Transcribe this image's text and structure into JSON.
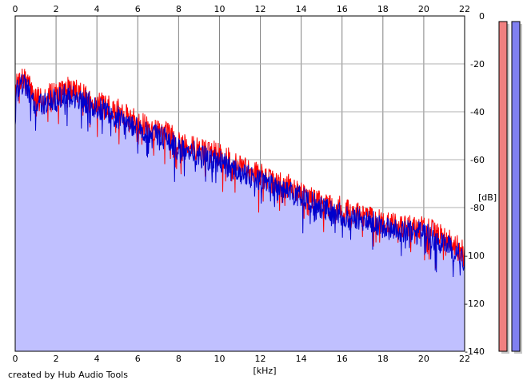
{
  "chart_data": {
    "type": "area",
    "xlabel": "[kHz]",
    "ylabel": "[dB]",
    "xlim": [
      0,
      22
    ],
    "ylim": [
      -140,
      0
    ],
    "x_ticks": [
      0,
      2,
      4,
      6,
      8,
      10,
      12,
      14,
      16,
      18,
      20,
      22
    ],
    "y_ticks": [
      0,
      -20,
      -40,
      -60,
      -80,
      -100,
      -120,
      -140
    ],
    "grid": true,
    "fill_color": "#c0c0ff",
    "series": [
      {
        "color": "#ff0000",
        "x": [
          0.0,
          0.3,
          0.6,
          1.0,
          1.5,
          2.0,
          2.5,
          3.0,
          3.5,
          4.0,
          4.5,
          5.0,
          5.5,
          6.0,
          6.5,
          7.0,
          7.5,
          8.0,
          8.5,
          9.0,
          9.5,
          10.0,
          10.5,
          11.0,
          11.5,
          12.0,
          12.5,
          13.0,
          13.5,
          14.0,
          14.5,
          15.0,
          15.5,
          16.0,
          16.5,
          17.0,
          17.5,
          18.0,
          18.5,
          19.0,
          19.5,
          20.0,
          20.5,
          21.0,
          21.5,
          22.0
        ],
        "values": [
          -30,
          -26,
          -28,
          -34,
          -33,
          -32,
          -30,
          -31,
          -34,
          -36,
          -38,
          -39,
          -42,
          -44,
          -47,
          -48,
          -49,
          -52,
          -54,
          -56,
          -56,
          -58,
          -60,
          -63,
          -64,
          -66,
          -69,
          -70,
          -71,
          -74,
          -76,
          -78,
          -80,
          -80,
          -82,
          -83,
          -85,
          -86,
          -87,
          -88,
          -87,
          -89,
          -90,
          -92,
          -95,
          -99
        ]
      },
      {
        "color": "#0000cc",
        "x": [
          0.0,
          0.3,
          0.6,
          1.0,
          1.5,
          2.0,
          2.5,
          3.0,
          3.5,
          4.0,
          4.5,
          5.0,
          5.5,
          6.0,
          6.5,
          7.0,
          7.5,
          8.0,
          8.5,
          9.0,
          9.5,
          10.0,
          10.5,
          11.0,
          11.5,
          12.0,
          12.5,
          13.0,
          13.5,
          14.0,
          14.5,
          15.0,
          15.5,
          16.0,
          16.5,
          17.0,
          17.5,
          18.0,
          18.5,
          19.0,
          19.5,
          20.0,
          20.5,
          21.0,
          21.5,
          22.0
        ],
        "values": [
          -33,
          -28,
          -30,
          -37,
          -36,
          -35,
          -33,
          -34,
          -36,
          -38,
          -40,
          -42,
          -44,
          -47,
          -49,
          -50,
          -52,
          -55,
          -56,
          -58,
          -60,
          -61,
          -63,
          -65,
          -67,
          -69,
          -71,
          -73,
          -74,
          -76,
          -78,
          -80,
          -82,
          -83,
          -84,
          -85,
          -86,
          -88,
          -89,
          -90,
          -90,
          -91,
          -93,
          -95,
          -98,
          -102
        ]
      }
    ],
    "level_meters": [
      {
        "color": "#f08080",
        "level": 1.0
      },
      {
        "color": "#8080f0",
        "level": 1.0
      }
    ]
  },
  "credit": "created by Hub Audio Tools"
}
